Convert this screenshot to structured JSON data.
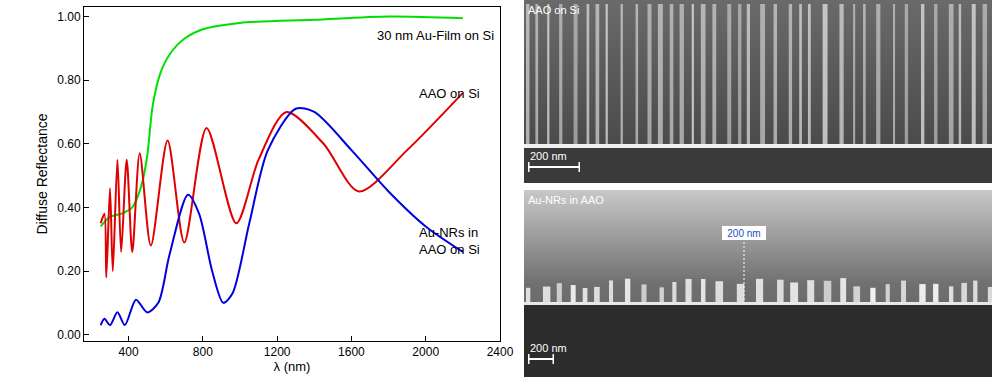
{
  "chart_data": {
    "type": "line",
    "x_label": "λ (nm)",
    "y_label": "Diffuse Reflectance",
    "xlim": [
      160,
      2400
    ],
    "xticks": [
      400,
      800,
      1200,
      1600,
      2000,
      2400
    ],
    "ylim": [
      -0.02,
      1.03
    ],
    "yticks": [
      {
        "value": 0,
        "label": "0.00"
      },
      {
        "value": 0.2,
        "label": "0.20"
      },
      {
        "value": 0.4,
        "label": "0.40"
      },
      {
        "value": 0.6,
        "label": "0.60"
      },
      {
        "value": 0.8,
        "label": "0.80"
      },
      {
        "value": 1,
        "label": "1.00"
      }
    ],
    "grid": false,
    "series": [
      {
        "name": "30 nm Au-Film on Si",
        "color": "#00e000",
        "x": [
          250,
          300,
          360,
          420,
          470,
          500,
          530,
          570,
          620,
          700,
          800,
          1000,
          1400,
          1800,
          2200
        ],
        "values": [
          0.34,
          0.37,
          0.38,
          0.4,
          0.47,
          0.56,
          0.72,
          0.82,
          0.88,
          0.93,
          0.96,
          0.98,
          0.99,
          1.0,
          0.995
        ]
      },
      {
        "name": "AAO on Si",
        "color": "#e00000",
        "x": [
          250,
          270,
          280,
          300,
          315,
          340,
          360,
          390,
          420,
          460,
          520,
          610,
          700,
          820,
          980,
          1100,
          1250,
          1450,
          1640,
          1900,
          2200
        ],
        "values": [
          0.35,
          0.38,
          0.18,
          0.46,
          0.2,
          0.55,
          0.26,
          0.55,
          0.26,
          0.57,
          0.28,
          0.61,
          0.29,
          0.65,
          0.35,
          0.55,
          0.7,
          0.6,
          0.45,
          0.58,
          0.76
        ]
      },
      {
        "name": "Au-NRs in\nAAO on Si",
        "color": "#0000e0",
        "x": [
          250,
          270,
          300,
          340,
          380,
          440,
          500,
          560,
          620,
          720,
          780,
          850,
          910,
          960,
          1050,
          1150,
          1300,
          1400,
          1600,
          1800,
          2000,
          2200
        ],
        "values": [
          0.03,
          0.05,
          0.03,
          0.07,
          0.03,
          0.11,
          0.07,
          0.1,
          0.25,
          0.44,
          0.38,
          0.2,
          0.1,
          0.13,
          0.35,
          0.58,
          0.71,
          0.7,
          0.58,
          0.45,
          0.34,
          0.26
        ]
      }
    ]
  },
  "images": [
    {
      "label": "AAO on Si",
      "scale_bar": "200 nm"
    },
    {
      "label": "Au-NRs in AAO",
      "scale_bar": "200 nm",
      "marker": "200 nm"
    }
  ]
}
